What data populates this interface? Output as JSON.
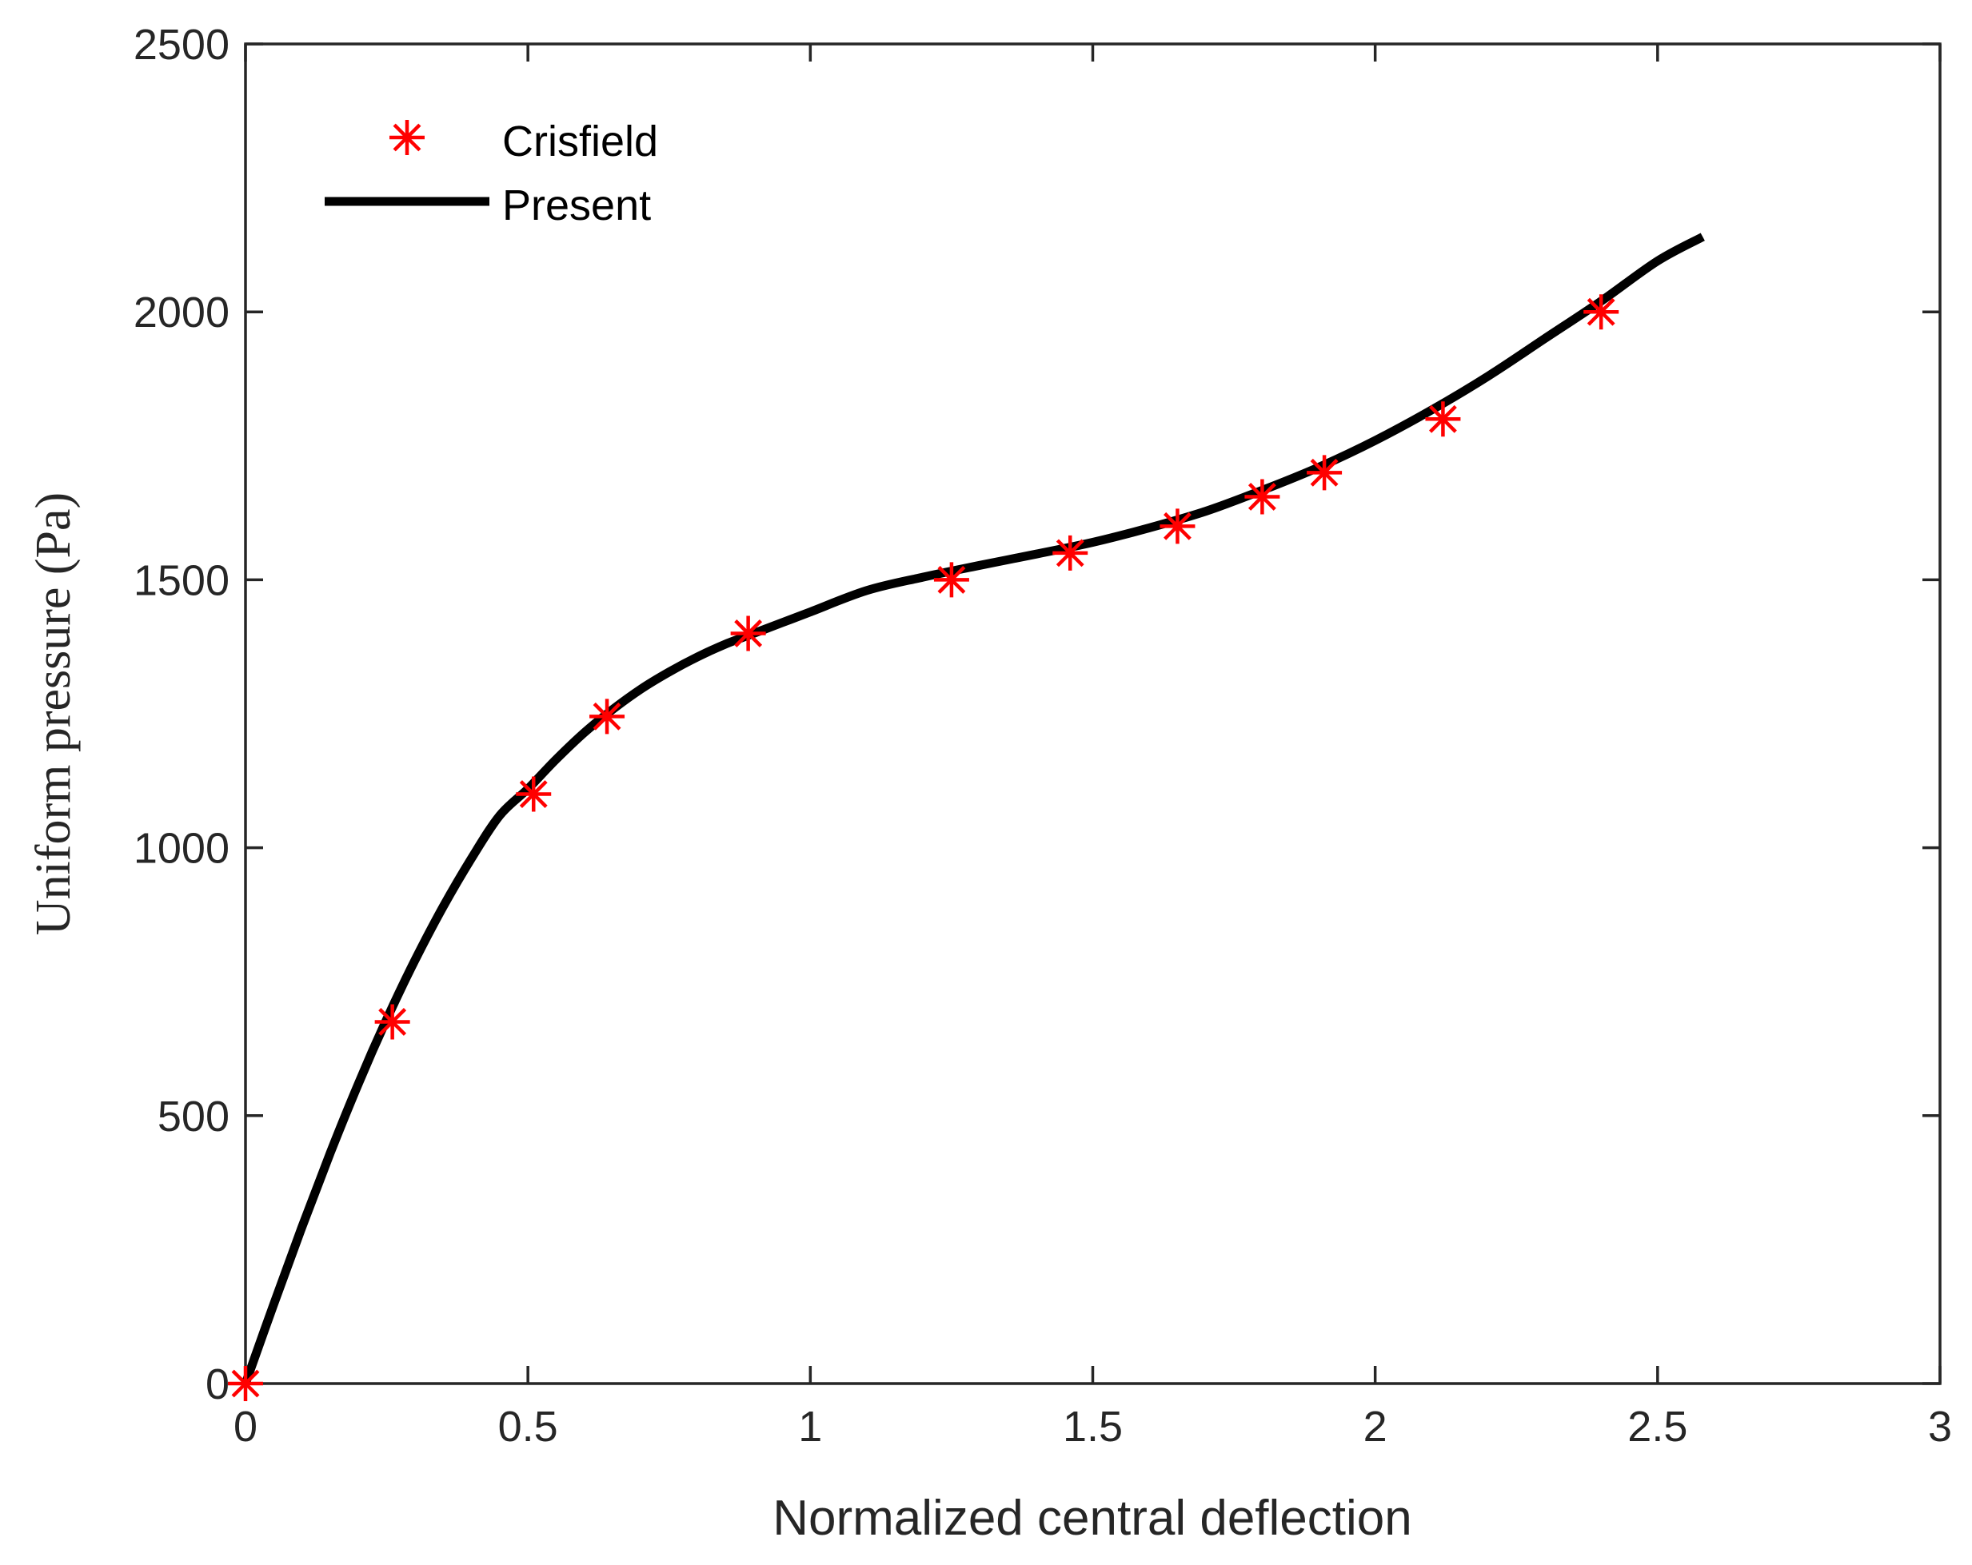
{
  "chart_data": {
    "type": "line",
    "title": "",
    "xlabel": "Normalized central deflection",
    "ylabel": "Uniform pressure (Pa)",
    "xlim": [
      0,
      3
    ],
    "ylim": [
      0,
      2500
    ],
    "xticks": [
      0,
      0.5,
      1,
      1.5,
      2,
      2.5,
      3
    ],
    "xtick_labels": [
      "0",
      "0.5",
      "1",
      "1.5",
      "2",
      "2.5",
      "3"
    ],
    "yticks": [
      0,
      500,
      1000,
      1500,
      2000,
      2500
    ],
    "ytick_labels": [
      "0",
      "500",
      "1000",
      "1500",
      "2000",
      "2500"
    ],
    "grid": false,
    "legend_position": "top-left",
    "series": [
      {
        "name": "Crisfield",
        "style": "markers",
        "marker": "asterisk",
        "color": "#ff0000",
        "x": [
          0.0,
          0.26,
          0.51,
          0.64,
          0.89,
          1.25,
          1.46,
          1.65,
          1.8,
          1.91,
          2.12,
          2.4
        ],
        "y": [
          0,
          675,
          1100,
          1245,
          1400,
          1500,
          1550,
          1600,
          1655,
          1700,
          1800,
          2000
        ]
      },
      {
        "name": "Present",
        "style": "line",
        "color": "#000000",
        "x": [
          0.0,
          0.05,
          0.1,
          0.15,
          0.2,
          0.25,
          0.3,
          0.35,
          0.4,
          0.45,
          0.5,
          0.55,
          0.6,
          0.65,
          0.7,
          0.75,
          0.8,
          0.85,
          0.9,
          0.95,
          1.0,
          1.1,
          1.2,
          1.3,
          1.4,
          1.5,
          1.6,
          1.7,
          1.8,
          1.9,
          2.0,
          2.1,
          2.2,
          2.3,
          2.4,
          2.5,
          2.58
        ],
        "y": [
          0,
          148,
          292,
          430,
          560,
          680,
          790,
          890,
          980,
          1060,
          1110,
          1165,
          1215,
          1258,
          1296,
          1328,
          1356,
          1380,
          1400,
          1420,
          1440,
          1480,
          1505,
          1527,
          1548,
          1570,
          1597,
          1628,
          1667,
          1710,
          1760,
          1817,
          1880,
          1950,
          2020,
          2095,
          2140
        ]
      }
    ]
  }
}
